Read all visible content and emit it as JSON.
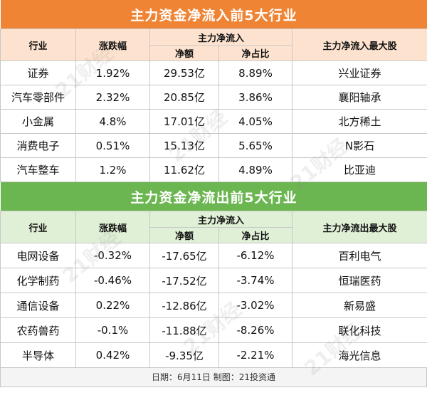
{
  "inflow": {
    "title": "主力资金净流入前5大行业",
    "headers": {
      "industry": "行业",
      "change": "涨跌幅",
      "netflow_group": "主力净流入",
      "amount": "净额",
      "ratio": "净占比",
      "top_stock": "主力净流入最大股"
    },
    "rows": [
      {
        "industry": "证券",
        "change": "1.92%",
        "amount": "29.53亿",
        "ratio": "8.89%",
        "top_stock": "兴业证券"
      },
      {
        "industry": "汽车零部件",
        "change": "2.32%",
        "amount": "20.85亿",
        "ratio": "3.86%",
        "top_stock": "襄阳轴承"
      },
      {
        "industry": "小金属",
        "change": "4.8%",
        "amount": "17.01亿",
        "ratio": "4.05%",
        "top_stock": "北方稀土"
      },
      {
        "industry": "消费电子",
        "change": "0.51%",
        "amount": "15.13亿",
        "ratio": "5.65%",
        "top_stock": "N影石"
      },
      {
        "industry": "汽车整车",
        "change": "1.2%",
        "amount": "11.62亿",
        "ratio": "4.89%",
        "top_stock": "比亚迪"
      }
    ]
  },
  "outflow": {
    "title": "主力资金净流出前5大行业",
    "headers": {
      "industry": "行业",
      "change": "涨跌幅",
      "netflow_group": "主力净流入",
      "amount": "净额",
      "ratio": "净占比",
      "top_stock": "主力净流出最大股"
    },
    "rows": [
      {
        "industry": "电网设备",
        "change": "-0.32%",
        "amount": "-17.65亿",
        "ratio": "-6.12%",
        "top_stock": "百利电气"
      },
      {
        "industry": "化学制药",
        "change": "-0.46%",
        "amount": "-17.52亿",
        "ratio": "-3.74%",
        "top_stock": "恒瑞医药"
      },
      {
        "industry": "通信设备",
        "change": "0.22%",
        "amount": "-12.86亿",
        "ratio": "-3.02%",
        "top_stock": "新易盛"
      },
      {
        "industry": "农药兽药",
        "change": "-0.1%",
        "amount": "-11.88亿",
        "ratio": "-8.26%",
        "top_stock": "联化科技"
      },
      {
        "industry": "半导体",
        "change": "0.42%",
        "amount": "-9.35亿",
        "ratio": "-2.21%",
        "top_stock": "海光信息"
      }
    ]
  },
  "footer": "日期：6月11日 制图：21投资通",
  "watermark_text": "21财经",
  "colors": {
    "inflow_title": "#ef8435",
    "inflow_header": "#fde3cf",
    "outflow_title": "#6cb651",
    "outflow_header": "#dff0d6"
  }
}
